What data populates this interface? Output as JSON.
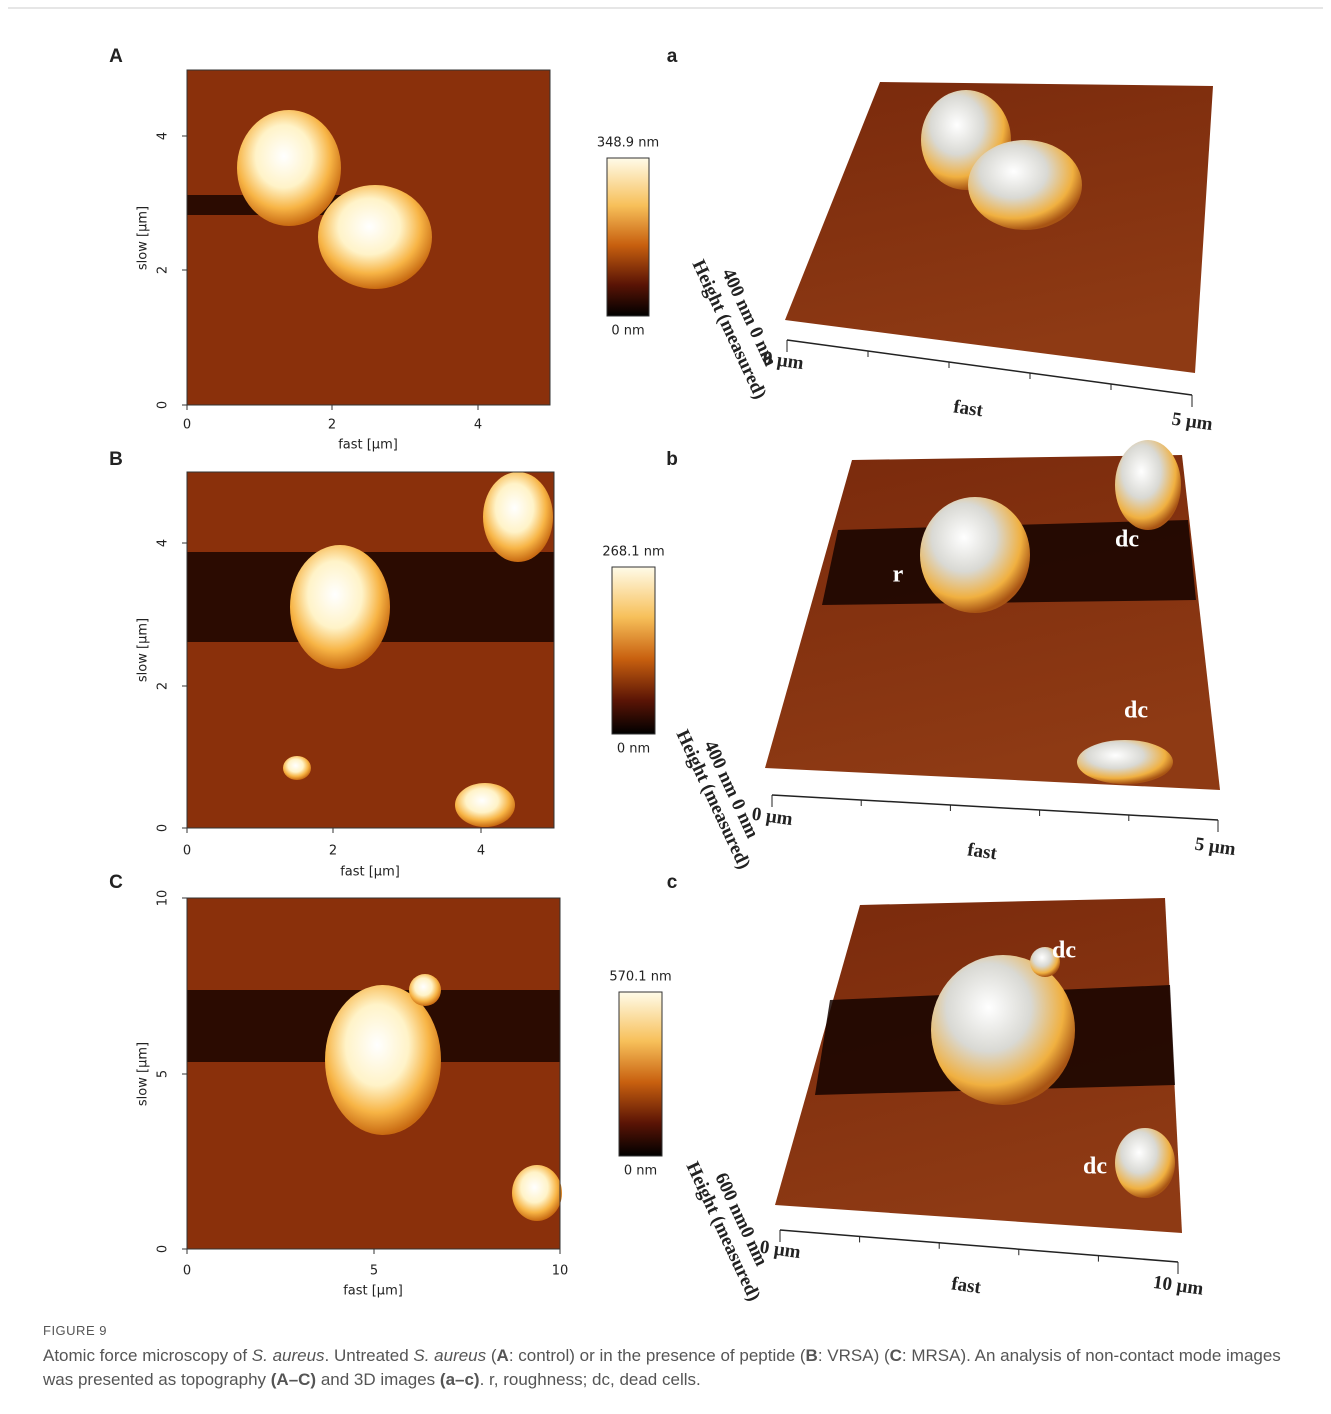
{
  "figure": {
    "panels": [
      {
        "label": "A",
        "image": {
          "x_label": "fast [µm]",
          "y_label": "slow [µm]",
          "xticks": [
            0,
            2,
            4
          ],
          "yticks": [
            0,
            2,
            4
          ]
        },
        "colorbar": {
          "max_label": "348.9 nm",
          "min_label": "0 nm"
        },
        "view_3d": {
          "label": "a",
          "height_scale": "400 nm 0 nm",
          "height_label": "Height (measured)",
          "x_start": "0 µm",
          "x_label": "fast",
          "x_end": "5 µm",
          "annotations": []
        }
      },
      {
        "label": "B",
        "image": {
          "x_label": "fast [µm]",
          "y_label": "slow [µm]",
          "xticks": [
            0,
            2,
            4
          ],
          "yticks": [
            0,
            2,
            4
          ]
        },
        "colorbar": {
          "max_label": "268.1 nm",
          "min_label": "0 nm"
        },
        "view_3d": {
          "label": "b",
          "height_scale": "400 nm 0 nm",
          "height_label": "Height (measured)",
          "x_start": "0 µm",
          "x_label": "fast",
          "x_end": "5 µm",
          "annotations": [
            "r",
            "dc",
            "dc"
          ]
        }
      },
      {
        "label": "C",
        "image": {
          "x_label": "fast [µm]",
          "y_label": "slow [µm]",
          "xticks": [
            0,
            5,
            10
          ],
          "yticks": [
            0,
            5,
            10
          ]
        },
        "colorbar": {
          "max_label": "570.1 nm",
          "min_label": "0 nm"
        },
        "view_3d": {
          "label": "c",
          "height_scale": "600 nm0 nm",
          "height_label": "Height (measured)",
          "x_start": "0 µm",
          "x_label": "fast",
          "x_end": "10 µm",
          "annotations": [
            "dc",
            "dc"
          ]
        }
      }
    ],
    "caption": {
      "label": "FIGURE 9",
      "runs": [
        {
          "text": "Atomic force microscopy of ",
          "style": "normal"
        },
        {
          "text": "S. aureus",
          "style": "italic"
        },
        {
          "text": ". Untreated ",
          "style": "normal"
        },
        {
          "text": "S. aureus",
          "style": "italic"
        },
        {
          "text": " (",
          "style": "normal"
        },
        {
          "text": "A",
          "style": "bold"
        },
        {
          "text": ": control) or in the presence of peptide (",
          "style": "normal"
        },
        {
          "text": "B",
          "style": "bold"
        },
        {
          "text": ": VRSA) (",
          "style": "normal"
        },
        {
          "text": "C",
          "style": "bold"
        },
        {
          "text": ": MRSA). An analysis of non-contact mode images was presented as topography ",
          "style": "normal"
        },
        {
          "text": "(A–C)",
          "style": "bold"
        },
        {
          "text": " and 3D images ",
          "style": "normal"
        },
        {
          "text": "(a–c)",
          "style": "bold"
        },
        {
          "text": ". r, roughness; dc, dead cells.",
          "style": "normal"
        }
      ]
    }
  }
}
